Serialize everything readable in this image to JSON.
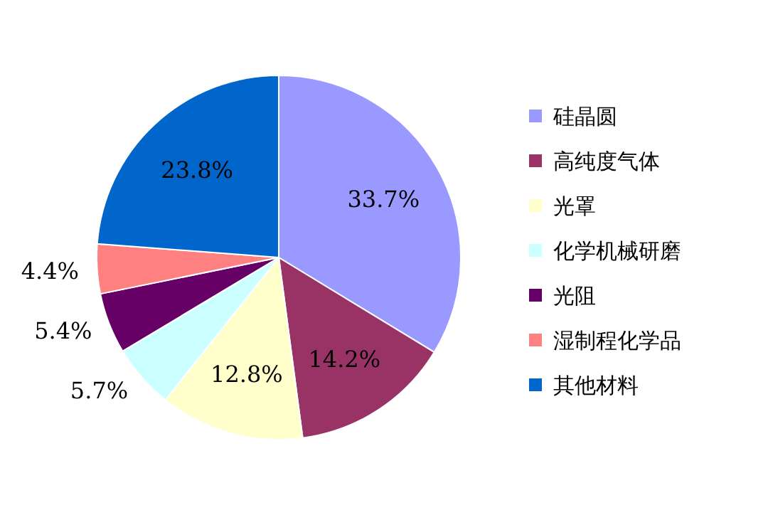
{
  "chart_data": {
    "type": "pie",
    "categories": [
      "硅晶圆",
      "高纯度气体",
      "光罩",
      "化学机械研磨",
      "光阻",
      "湿制程化学品",
      "其他材料"
    ],
    "values": [
      33.7,
      14.2,
      12.8,
      5.7,
      5.4,
      4.4,
      23.8
    ],
    "colors": [
      "#9999ff",
      "#993366",
      "#ffffcc",
      "#ccffff",
      "#660066",
      "#ff8080",
      "#0066cc"
    ],
    "value_labels": [
      "33.7%",
      "14.2%",
      "12.8%",
      "5.7%",
      "5.4%",
      "4.4%",
      "23.8%"
    ],
    "legend": "right"
  }
}
